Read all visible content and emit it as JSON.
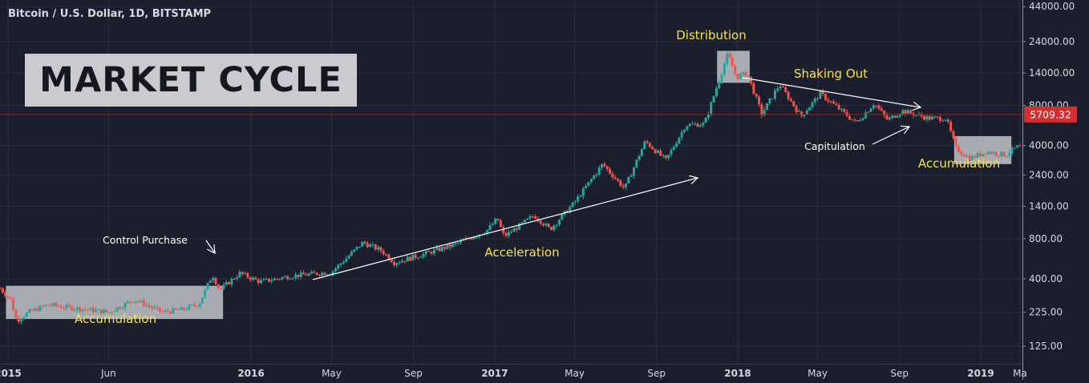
{
  "header": {
    "symbol_line": "Bitcoin / U.S. Dollar, 1D, BITSTAMP"
  },
  "title_box": {
    "text": "MARKET CYCLE"
  },
  "colors": {
    "background": "#1b1f2d",
    "grid": "#2a2e3c",
    "candle_up": "#26a69a",
    "candle_down": "#ef5350",
    "annotation_yellow": "#f5e14a",
    "annotation_white": "#ffffff",
    "highlight_box": "#c9cbd0",
    "price_line": "#9b2226",
    "price_badge": "#d32f2f",
    "axis_text": "#d6d8de"
  },
  "chart_data": {
    "type": "candlestick",
    "title": "Bitcoin / U.S. Dollar, 1D, BITSTAMP",
    "y_scale": "log",
    "ylim": [
      70,
      46000
    ],
    "x_range": [
      "2014-12-20",
      "2019-03-01"
    ],
    "grid": true,
    "y_ticks": [
      44000,
      24000,
      14000,
      8000,
      4000,
      2400,
      1400,
      800,
      400,
      225,
      125
    ],
    "y_tick_labels": [
      "44000.00",
      "24000.00",
      "14000.00",
      "8000.00",
      "4000.00",
      "2400.00",
      "1400.00",
      "800.00",
      "400.00",
      "225.00",
      "125.00"
    ],
    "x_ticks": [
      {
        "date": "2015-01-01",
        "label": "2015",
        "bold": true
      },
      {
        "date": "2015-06-01",
        "label": "Jun",
        "bold": false
      },
      {
        "date": "2016-01-01",
        "label": "2016",
        "bold": true
      },
      {
        "date": "2016-05-01",
        "label": "May",
        "bold": false
      },
      {
        "date": "2016-09-01",
        "label": "Sep",
        "bold": false
      },
      {
        "date": "2017-01-01",
        "label": "2017",
        "bold": true
      },
      {
        "date": "2017-05-01",
        "label": "May",
        "bold": false
      },
      {
        "date": "2017-09-01",
        "label": "Sep",
        "bold": false
      },
      {
        "date": "2018-01-01",
        "label": "2018",
        "bold": true
      },
      {
        "date": "2018-05-01",
        "label": "May",
        "bold": false
      },
      {
        "date": "2018-09-01",
        "label": "Sep",
        "bold": false
      },
      {
        "date": "2019-01-01",
        "label": "2019",
        "bold": true
      },
      {
        "date": "2019-03-01",
        "label": "Ma",
        "bold": false
      }
    ],
    "price_path": [
      [
        "2014-12-20",
        340
      ],
      [
        "2015-01-05",
        280
      ],
      [
        "2015-01-14",
        195
      ],
      [
        "2015-02-01",
        225
      ],
      [
        "2015-03-01",
        255
      ],
      [
        "2015-04-01",
        245
      ],
      [
        "2015-05-01",
        235
      ],
      [
        "2015-06-01",
        225
      ],
      [
        "2015-07-10",
        280
      ],
      [
        "2015-08-20",
        225
      ],
      [
        "2015-09-20",
        235
      ],
      [
        "2015-10-15",
        260
      ],
      [
        "2015-11-04",
        430
      ],
      [
        "2015-11-15",
        330
      ],
      [
        "2015-12-15",
        440
      ],
      [
        "2016-01-15",
        380
      ],
      [
        "2016-03-01",
        420
      ],
      [
        "2016-05-01",
        450
      ],
      [
        "2016-06-17",
        750
      ],
      [
        "2016-07-15",
        650
      ],
      [
        "2016-08-03",
        530
      ],
      [
        "2016-09-15",
        610
      ],
      [
        "2016-11-01",
        720
      ],
      [
        "2016-12-20",
        920
      ],
      [
        "2017-01-05",
        1130
      ],
      [
        "2017-01-15",
        830
      ],
      [
        "2017-03-01",
        1200
      ],
      [
        "2017-03-25",
        940
      ],
      [
        "2017-05-01",
        1500
      ],
      [
        "2017-06-12",
        2900
      ],
      [
        "2017-07-15",
        1900
      ],
      [
        "2017-08-15",
        4300
      ],
      [
        "2017-09-15",
        3100
      ],
      [
        "2017-10-15",
        5700
      ],
      [
        "2017-11-12",
        5800
      ],
      [
        "2017-12-17",
        19500
      ],
      [
        "2017-12-30",
        13000
      ],
      [
        "2018-01-15",
        14000
      ],
      [
        "2018-02-06",
        6900
      ],
      [
        "2018-03-05",
        11500
      ],
      [
        "2018-04-06",
        6600
      ],
      [
        "2018-05-05",
        9800
      ],
      [
        "2018-06-28",
        5900
      ],
      [
        "2018-07-25",
        8300
      ],
      [
        "2018-08-14",
        6200
      ],
      [
        "2018-09-05",
        7300
      ],
      [
        "2018-10-15",
        6400
      ],
      [
        "2018-11-10",
        6400
      ],
      [
        "2018-11-25",
        3800
      ],
      [
        "2018-12-15",
        3200
      ],
      [
        "2019-01-10",
        3600
      ],
      [
        "2019-02-07",
        3400
      ],
      [
        "2019-02-25",
        3900
      ],
      [
        "2019-03-01",
        3900
      ]
    ],
    "last_price": {
      "value": 5709.32,
      "label": "5709.32"
    },
    "annotations": {
      "distribution": "Distribution",
      "shaking_out": "Shaking Out",
      "capitulation": "Capitulation",
      "accumulation_2018": "Accumulation",
      "acceleration": "Acceleration",
      "control_purchase": "Control Purchase",
      "accumulation_2015": "Accumulation"
    }
  }
}
